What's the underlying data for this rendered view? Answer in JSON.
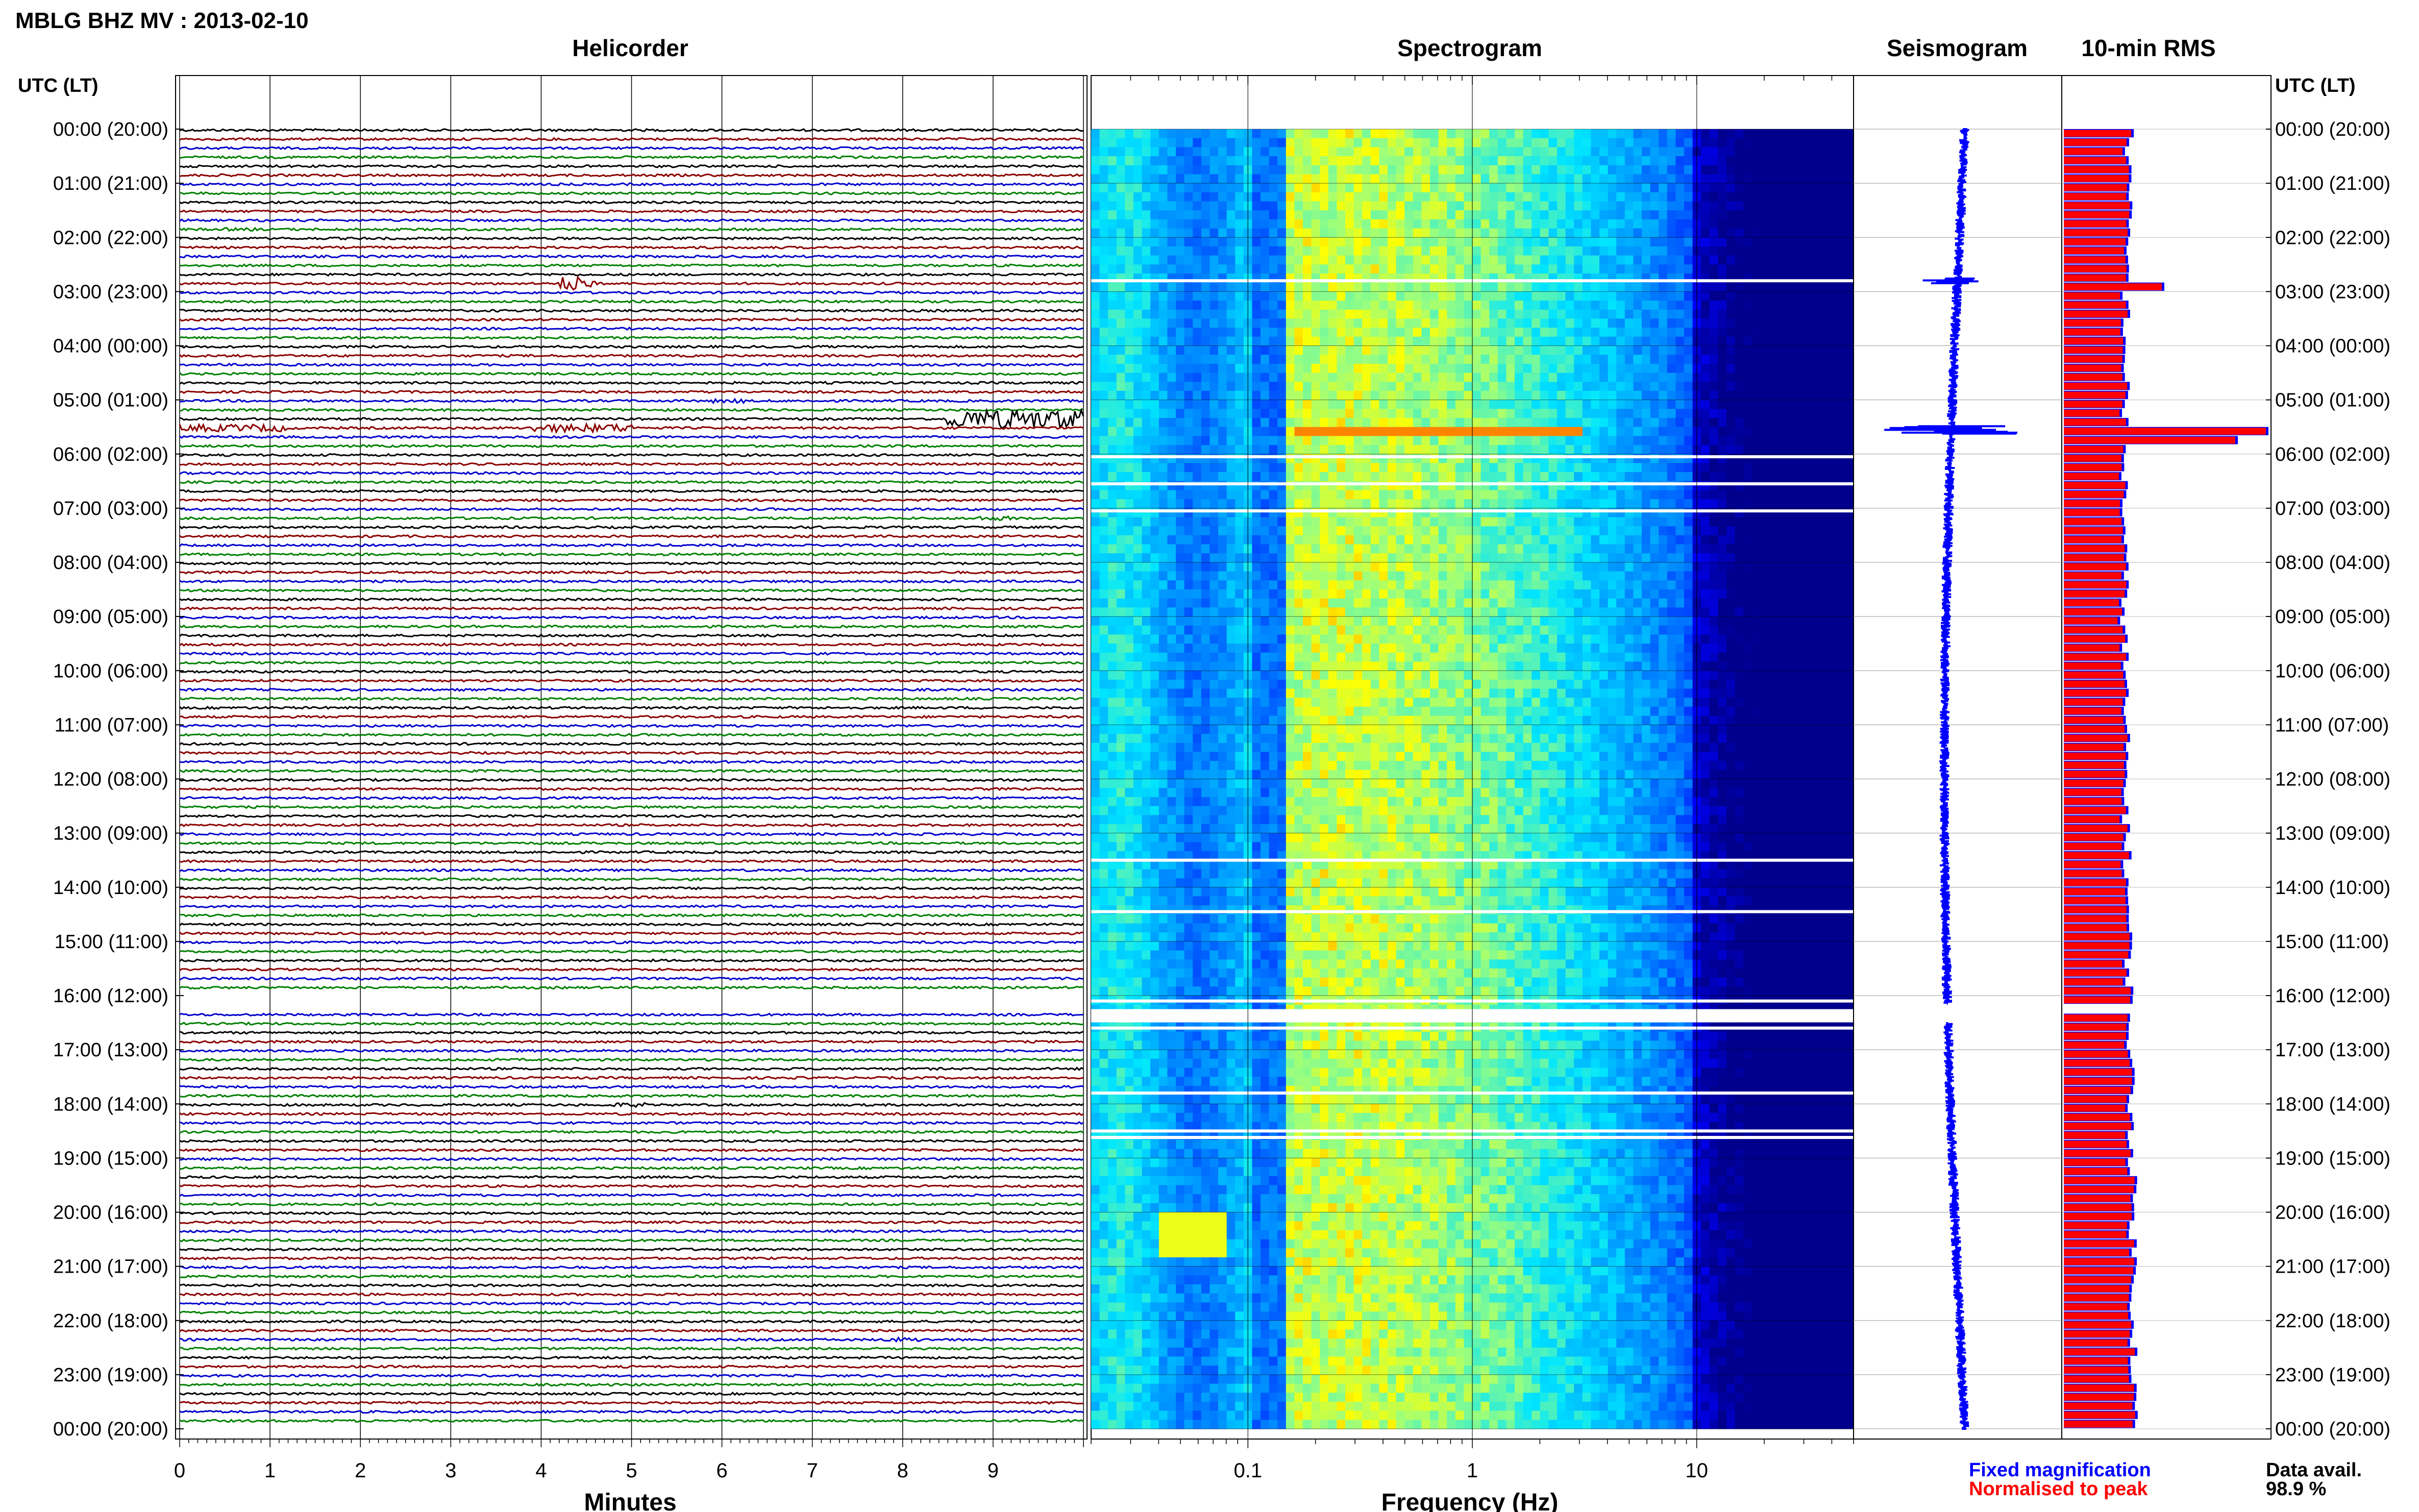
{
  "title": "MBLG BHZ MV : 2013-02-10",
  "left_axis_label": "UTC (LT)",
  "right_axis_label": "UTC (LT)",
  "time_labels": [
    "00:00 (20:00)",
    "01:00 (21:00)",
    "02:00 (22:00)",
    "03:00 (23:00)",
    "04:00 (00:00)",
    "05:00 (01:00)",
    "06:00 (02:00)",
    "07:00 (03:00)",
    "08:00 (04:00)",
    "09:00 (05:00)",
    "10:00 (06:00)",
    "11:00 (07:00)",
    "12:00 (08:00)",
    "13:00 (09:00)",
    "14:00 (10:00)",
    "15:00 (11:00)",
    "16:00 (12:00)",
    "17:00 (13:00)",
    "18:00 (14:00)",
    "19:00 (15:00)",
    "20:00 (16:00)",
    "21:00 (17:00)",
    "22:00 (18:00)",
    "23:00 (19:00)",
    "00:00 (20:00)"
  ],
  "legend": {
    "fixed": "Fixed magnification",
    "normalised": "Normalised to peak",
    "fixed_color": "#0000ff",
    "normalised_color": "#ff0000"
  },
  "data_availability": {
    "label": "Data avail.",
    "value": "98.9 %"
  },
  "chart_data": [
    {
      "type": "line",
      "title": "Helicorder",
      "xlabel": "Minutes",
      "ylabel": "UTC (LT)",
      "x_ticks": [
        0,
        1,
        2,
        3,
        4,
        5,
        6,
        7,
        8,
        9
      ],
      "xlim": [
        0,
        10
      ],
      "rows": 144,
      "row_minutes": 10,
      "trace_colors": [
        "#000000",
        "#8b0000",
        "#0000cd",
        "#008000"
      ],
      "events": [
        {
          "row": 11,
          "start_min": 0.5,
          "end_min": 0.9,
          "amp": 3
        },
        {
          "row": 17,
          "start_min": 4.2,
          "end_min": 4.6,
          "amp": 14
        },
        {
          "row": 30,
          "start_min": 5.9,
          "end_min": 6.3,
          "amp": 4
        },
        {
          "row": 32,
          "start_min": 8.5,
          "end_min": 10,
          "amp": 18
        },
        {
          "row": 33,
          "start_min": 0,
          "end_min": 1.2,
          "amp": 7
        },
        {
          "row": 33,
          "start_min": 3.9,
          "end_min": 5.0,
          "amp": 8
        },
        {
          "row": 43,
          "start_min": 8.7,
          "end_min": 9.3,
          "amp": 4
        },
        {
          "row": 108,
          "start_min": 4.8,
          "end_min": 5.2,
          "amp": 4
        },
        {
          "row": 134,
          "start_min": 7.8,
          "end_min": 8.2,
          "amp": 4
        }
      ],
      "gaps": [
        {
          "start_row": 96,
          "end_row": 97
        }
      ]
    },
    {
      "type": "heatmap",
      "title": "Spectrogram",
      "xlabel": "Frequency (Hz)",
      "x_scale": "log",
      "xlim": [
        0.02,
        50
      ],
      "x_ticks": [
        0.1,
        1,
        10
      ],
      "x_tick_labels": [
        "0.1",
        "1",
        "10"
      ],
      "peak_band_hz": [
        0.15,
        0.35
      ],
      "colormap": [
        "#00008b",
        "#0000ff",
        "#0080ff",
        "#00ffff",
        "#ffff00",
        "#ff0000"
      ],
      "gap_hours": [
        2.8,
        6.05,
        6.55,
        7.05,
        13.5,
        14.45,
        16.1,
        16.3,
        16.6,
        17.8,
        18.5,
        18.62
      ],
      "highlight_hours": [
        5.5
      ]
    },
    {
      "type": "line",
      "title": "Seismogram",
      "description_values": "per-row amplitude trace (24h compressed)",
      "gap_hours": [
        16.2,
        16.5
      ]
    },
    {
      "type": "bar",
      "title": "10-min RMS",
      "orientation": "horizontal",
      "rows": 144,
      "baseline": 1.0,
      "spike_rows": [
        {
          "row": 33,
          "value": 3.3
        },
        {
          "row": 34,
          "value": 2.8
        },
        {
          "row": 17,
          "value": 1.6
        }
      ],
      "series": [
        {
          "name": "Fixed magnification",
          "color": "#0000ff"
        },
        {
          "name": "Normalised to peak",
          "color": "#ff0000"
        }
      ]
    }
  ]
}
